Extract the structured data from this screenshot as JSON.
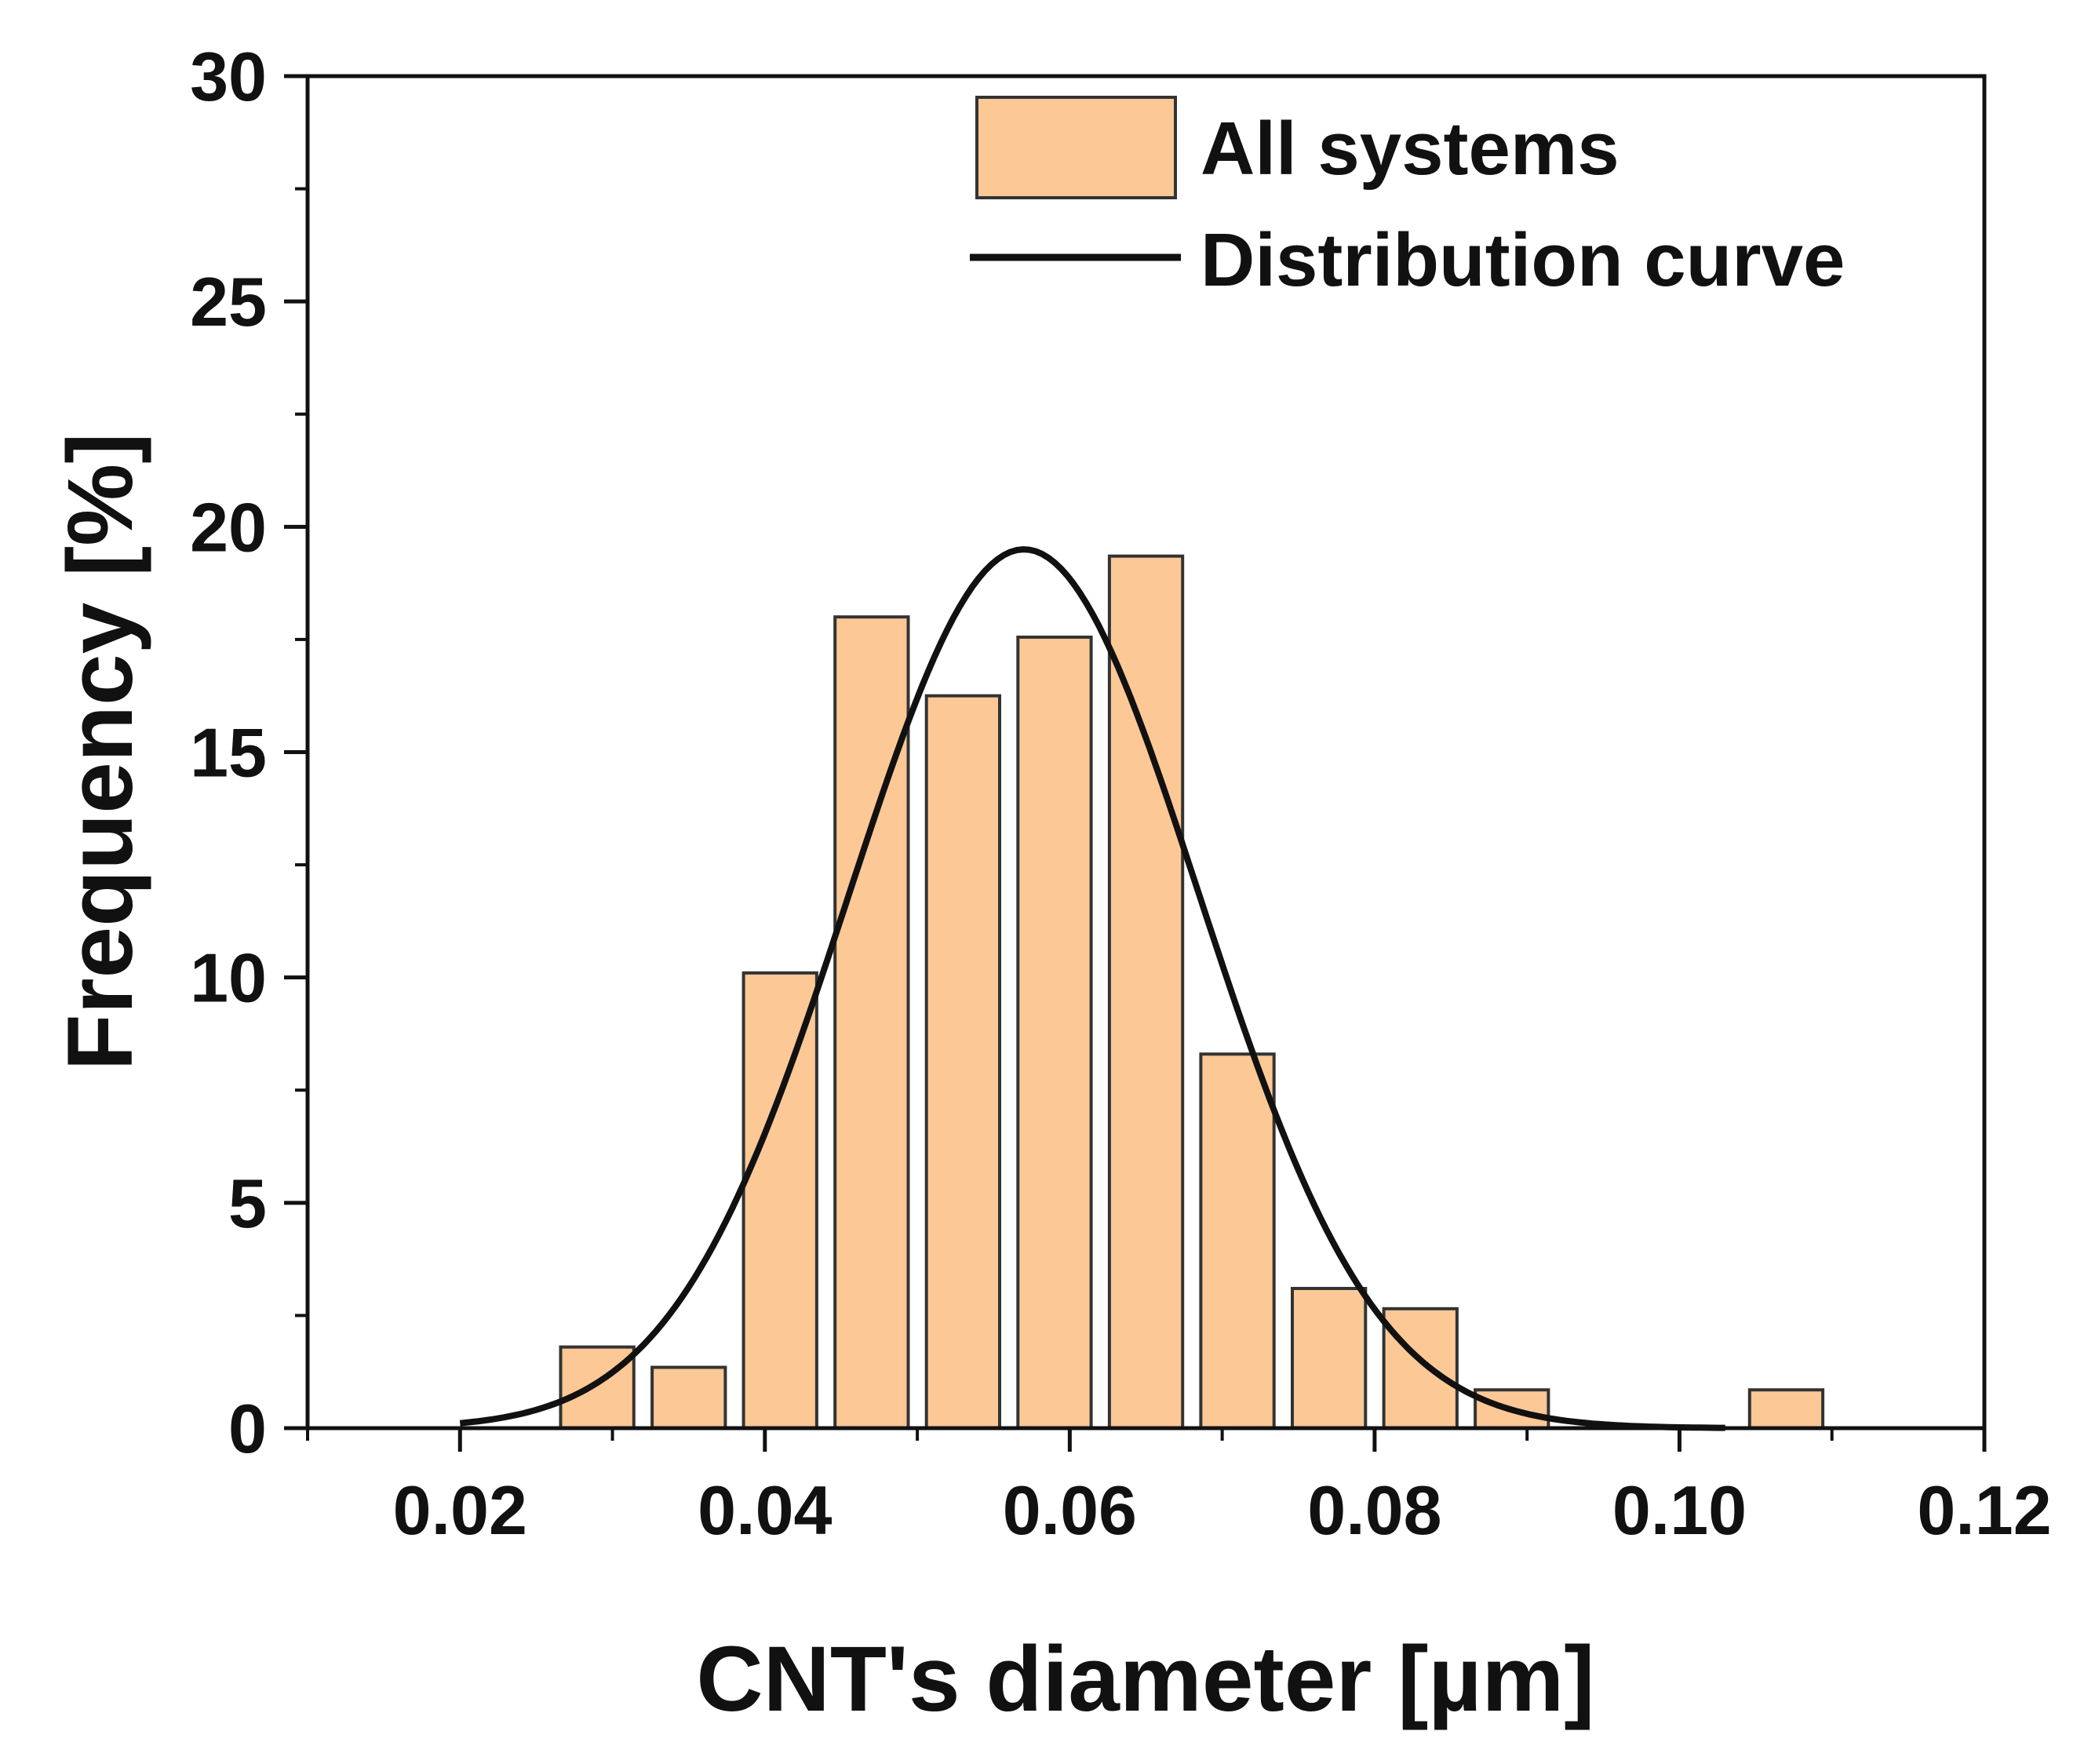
{
  "chart_data": {
    "type": "bar",
    "title": "",
    "xlabel": "CNT's diameter [µm]",
    "ylabel": "Frequency [%]",
    "xlim": [
      0.01,
      0.12
    ],
    "ylim": [
      0,
      30
    ],
    "x_ticks": [
      0.02,
      0.04,
      0.06,
      0.08,
      0.1,
      0.12
    ],
    "x_tick_labels": [
      "0.02",
      "0.04",
      "0.06",
      "0.08",
      "0.10",
      "0.12"
    ],
    "y_ticks": [
      0,
      5,
      10,
      15,
      20,
      25,
      30
    ],
    "y_tick_labels": [
      "0",
      "5",
      "10",
      "15",
      "20",
      "25",
      "30"
    ],
    "grid": false,
    "legend_position": "top-right",
    "bin_width": 0.006,
    "series": [
      {
        "name": "All systems",
        "kind": "histogram",
        "color": "#FCC896",
        "edge_color": "#333333",
        "centers": [
          0.029,
          0.035,
          0.041,
          0.047,
          0.053,
          0.059,
          0.065,
          0.071,
          0.077,
          0.083,
          0.089,
          0.107
        ],
        "values": [
          1.8,
          1.35,
          10.1,
          18.0,
          16.25,
          17.55,
          19.35,
          8.3,
          3.1,
          2.65,
          0.85,
          0.85
        ]
      },
      {
        "name": "Distribution curve",
        "kind": "normal-fit",
        "color": "#111111",
        "mean": 0.057,
        "sd": 0.0115,
        "peak": 19.5,
        "x_range": [
          0.02,
          0.103
        ]
      }
    ]
  }
}
